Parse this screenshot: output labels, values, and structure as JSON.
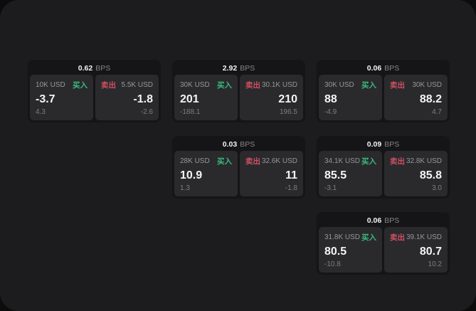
{
  "labels": {
    "buy": "买入",
    "sell": "卖出",
    "bps_unit": "BPS"
  },
  "colors": {
    "buy_green": "#3cba7c",
    "sell_red": "#cf4f63",
    "panel_bg": "#1c1c1e",
    "card_bg": "#151517",
    "subcard_bg": "#2a2a2d"
  },
  "cards": [
    {
      "row": 0,
      "col": 0,
      "bps": "0.62",
      "buy": {
        "amount": "10K USD",
        "value": "-3.7",
        "delta": "4.3"
      },
      "sell": {
        "amount": "5.5K USD",
        "value": "-1.8",
        "delta": "-2.6"
      }
    },
    {
      "row": 0,
      "col": 1,
      "bps": "2.92",
      "buy": {
        "amount": "30K USD",
        "value": "201",
        "delta": "-188.1"
      },
      "sell": {
        "amount": "30.1K USD",
        "value": "210",
        "delta": "196.5"
      }
    },
    {
      "row": 0,
      "col": 2,
      "bps": "0.06",
      "buy": {
        "amount": "30K USD",
        "value": "88",
        "delta": "-4.9"
      },
      "sell": {
        "amount": "30K USD",
        "value": "88.2",
        "delta": "4.7"
      }
    },
    {
      "row": 1,
      "col": 1,
      "bps": "0.03",
      "buy": {
        "amount": "28K USD",
        "value": "10.9",
        "delta": "1.3"
      },
      "sell": {
        "amount": "32.6K USD",
        "value": "11",
        "delta": "-1.8"
      }
    },
    {
      "row": 1,
      "col": 2,
      "bps": "0.09",
      "buy": {
        "amount": "34.1K USD",
        "value": "85.5",
        "delta": "-3.1"
      },
      "sell": {
        "amount": "32.8K USD",
        "value": "85.8",
        "delta": "3.0"
      }
    },
    {
      "row": 2,
      "col": 2,
      "bps": "0.06",
      "buy": {
        "amount": "31.8K USD",
        "value": "80.5",
        "delta": "-10.8"
      },
      "sell": {
        "amount": "39.1K USD",
        "value": "80.7",
        "delta": "10.2"
      }
    }
  ]
}
